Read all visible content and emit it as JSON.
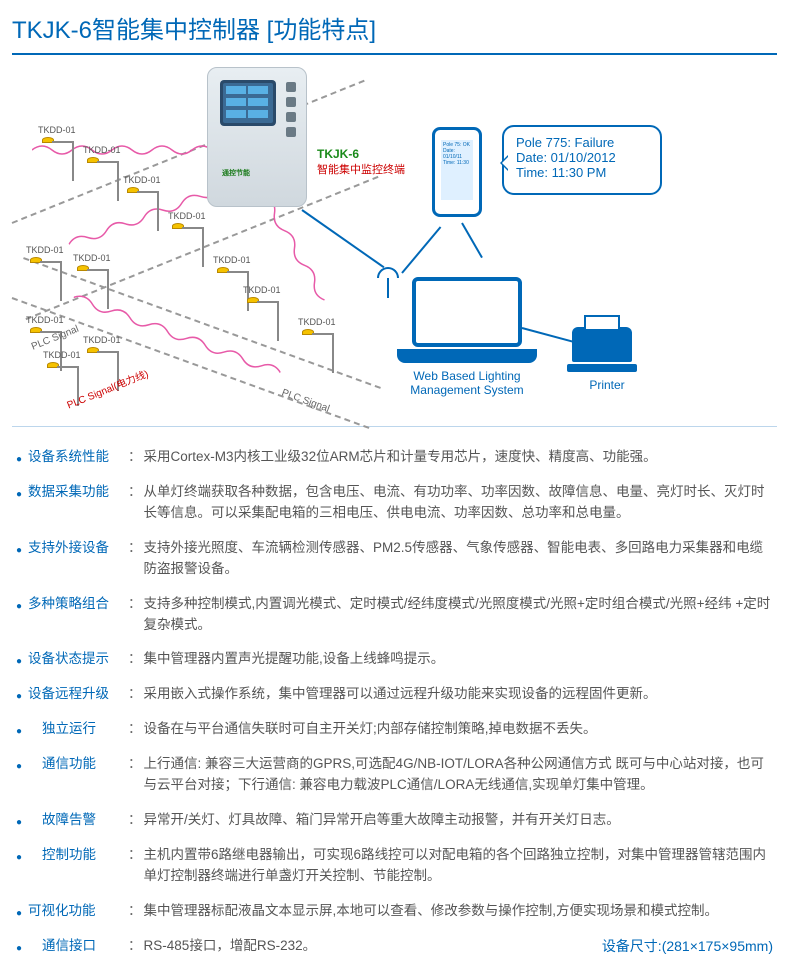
{
  "title": "TKJK-6智能集中控制器 [功能特点]",
  "diagram": {
    "controller": {
      "name_en": "TKJK-6",
      "name_cn": "智能集中监控终端",
      "brand": "通控节能"
    },
    "pole_label": "TKDD-01",
    "plc_signal": "PLC Signal",
    "power_line": "PLC Signal(电力线)",
    "laptop_label1": "Web Based Lighting",
    "laptop_label2": "Management System",
    "printer_label": "Printer",
    "bubble": {
      "line1": "Pole 775: Failure",
      "line2": "Date: 01/10/2012",
      "line3": "Time: 11:30 PM"
    },
    "colors": {
      "primary": "#0068b7",
      "accent_red": "#cc0000",
      "accent_green": "#1a8a1a",
      "text_gray": "#555",
      "wave_pink": "#e75aa8",
      "lamp_yellow": "#f5c200"
    }
  },
  "features": [
    {
      "label": "设备系统性能",
      "text": "采用Cortex-M3内核工业级32位ARM芯片和计量专用芯片，速度快、精度高、功能强。"
    },
    {
      "label": "数据采集功能",
      "text": "从单灯终端获取各种数据，包含电压、电流、有功功率、功率因数、故障信息、电量、亮灯时长、灭灯时长等信息。可以采集配电箱的三相电压、供电电流、功率因数、总功率和总电量。"
    },
    {
      "label": "支持外接设备",
      "text": "支持外接光照度、车流辆检测传感器、PM2.5传感器、气象传感器、智能电表、多回路电力采集器和电缆防盗报警设备。"
    },
    {
      "label": "多种策略组合",
      "text": "支持多种控制模式,内置调光模式、定时模式/经纬度模式/光照度模式/光照+定时组合模式/光照+经纬 +定时复杂模式。"
    },
    {
      "label": "设备状态提示",
      "text": "集中管理器内置声光提醒功能,设备上线蜂鸣提示。"
    },
    {
      "label": "设备远程升级",
      "text": "采用嵌入式操作系统，集中管理器可以通过远程升级功能来实现设备的远程固件更新。"
    },
    {
      "label": "独立运行",
      "text": "设备在与平台通信失联时可自主开关灯;内部存储控制策略,掉电数据不丢失。",
      "indent": true
    },
    {
      "label": "通信功能",
      "text": "上行通信: 兼容三大运营商的GPRS,可选配4G/NB-IOT/LORA各种公网通信方式 既可与中心站对接，也可与云平台对接；下行通信: 兼容电力载波PLC通信/LORA无线通信,实现单灯集中管理。",
      "indent": true
    },
    {
      "label": "故障告警",
      "text": "异常开/关灯、灯具故障、箱门异常开启等重大故障主动报警，并有开关灯日志。",
      "indent": true
    },
    {
      "label": "控制功能",
      "text": "主机内置带6路继电器输出，可实现6路线控可以对配电箱的各个回路独立控制，对集中管理器管辖范围内单灯控制器终端进行单盏灯开关控制、节能控制。",
      "indent": true
    },
    {
      "label": "可视化功能",
      "text": "集中管理器标配液晶文本显示屏,本地可以查看、修改参数与操作控制,方便实现场景和模式控制。"
    }
  ],
  "interface": {
    "label": "通信接口",
    "text": "RS-485接口，增配RS-232。"
  },
  "dimensions": {
    "label": "设备尺寸:",
    "value": "(281×175×95mm)"
  }
}
